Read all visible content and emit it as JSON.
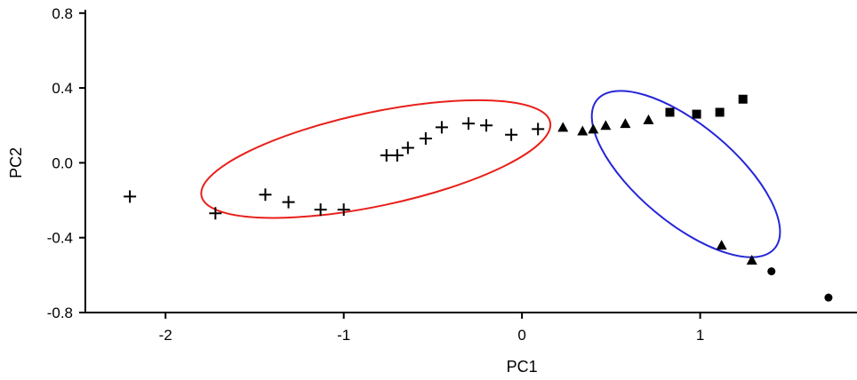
{
  "chart_data": {
    "type": "scatter",
    "title": "",
    "xlabel": "PC1",
    "ylabel": "PC2",
    "xlim": [
      -2.45,
      1.88
    ],
    "ylim": [
      -0.8,
      0.87
    ],
    "x_ticks": [
      {
        "value": -2,
        "label": "-2"
      },
      {
        "value": -1,
        "label": "-1"
      },
      {
        "value": 0,
        "label": "0"
      },
      {
        "value": 1,
        "label": "1"
      }
    ],
    "y_ticks": [
      {
        "value": 0.8,
        "label": "0.8"
      },
      {
        "value": 0.4,
        "label": "0.4"
      },
      {
        "value": 0.0,
        "label": "0.0"
      },
      {
        "value": -0.4,
        "label": "-0.4"
      },
      {
        "value": -0.8,
        "label": "-0.8"
      }
    ],
    "grid": false,
    "series": [
      {
        "marker": "plus",
        "points": [
          {
            "x": -2.2,
            "y": -0.18
          },
          {
            "x": -1.72,
            "y": -0.27
          },
          {
            "x": -1.44,
            "y": -0.17
          },
          {
            "x": -1.31,
            "y": -0.21
          },
          {
            "x": -1.13,
            "y": -0.25
          },
          {
            "x": -1.0,
            "y": -0.25
          },
          {
            "x": -0.76,
            "y": 0.04
          },
          {
            "x": -0.7,
            "y": 0.04
          },
          {
            "x": -0.64,
            "y": 0.08
          },
          {
            "x": -0.54,
            "y": 0.13
          },
          {
            "x": -0.45,
            "y": 0.19
          },
          {
            "x": -0.3,
            "y": 0.21
          },
          {
            "x": -0.2,
            "y": 0.2
          },
          {
            "x": -0.06,
            "y": 0.15
          },
          {
            "x": 0.09,
            "y": 0.18
          }
        ]
      },
      {
        "marker": "triangle",
        "points": [
          {
            "x": 0.23,
            "y": 0.19
          },
          {
            "x": 0.34,
            "y": 0.17
          },
          {
            "x": 0.4,
            "y": 0.18
          },
          {
            "x": 0.47,
            "y": 0.2
          },
          {
            "x": 0.58,
            "y": 0.21
          },
          {
            "x": 0.71,
            "y": 0.23
          },
          {
            "x": 1.12,
            "y": -0.44
          },
          {
            "x": 1.29,
            "y": -0.52
          }
        ]
      },
      {
        "marker": "square",
        "points": [
          {
            "x": 0.83,
            "y": 0.27
          },
          {
            "x": 0.98,
            "y": 0.26
          },
          {
            "x": 1.11,
            "y": 0.27
          },
          {
            "x": 1.24,
            "y": 0.34
          }
        ]
      },
      {
        "marker": "circle",
        "points": [
          {
            "x": 1.4,
            "y": -0.58
          },
          {
            "x": 1.72,
            "y": -0.72
          }
        ]
      }
    ],
    "annotations": [
      {
        "shape": "ellipse",
        "color": "#e8201a",
        "cx": -0.82,
        "cy": 0.02,
        "rx": 1.0,
        "ry": 0.25,
        "tilt_deg": -12
      },
      {
        "shape": "ellipse",
        "color": "#2626d8",
        "cx": 0.92,
        "cy": -0.06,
        "rx": 0.65,
        "ry": 0.26,
        "tilt_deg": 40
      }
    ],
    "colors": {
      "axis": "#000000",
      "marker": "#000000"
    }
  }
}
